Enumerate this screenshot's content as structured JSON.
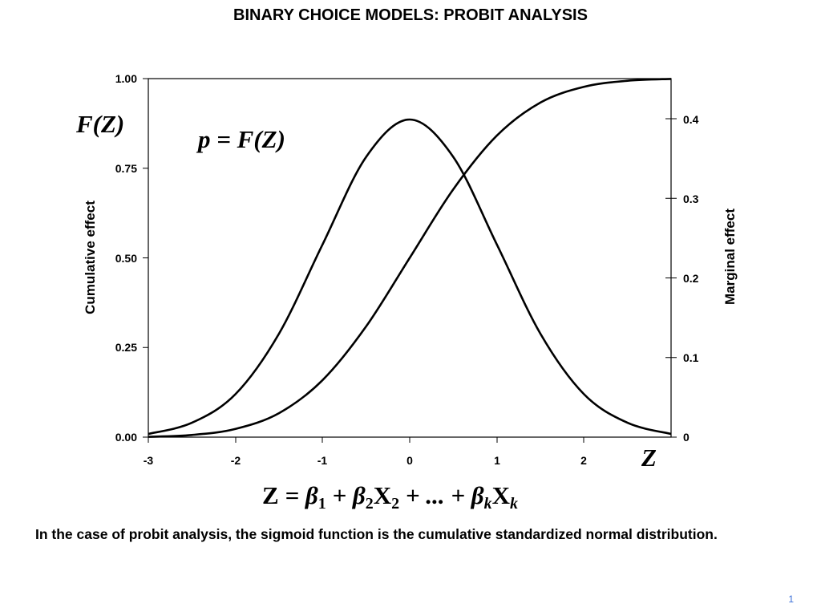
{
  "slide": {
    "title": "BINARY CHOICE MODELS: PROBIT ANALYSIS",
    "caption": "In the case of probit analysis, the sigmoid function is the cumulative standardized normal distribution.",
    "page_number": "1"
  },
  "annotations": {
    "left_math_label": "F(Z)",
    "in_plot_equation": "p = F(Z)",
    "x_math_label": "Z",
    "bottom_equation": "Z = β1 + β2X2 + ... + βkXk"
  },
  "chart_data": {
    "type": "line",
    "title": "BINARY CHOICE MODELS: PROBIT ANALYSIS",
    "xlabel": "Z",
    "ylabel": "Cumulative effect",
    "y2label": "Marginal effect",
    "xlim": [
      -3,
      3
    ],
    "ylim": [
      0,
      1
    ],
    "y2lim": [
      0,
      0.45
    ],
    "x_ticks": [
      "-3",
      "-2",
      "-1",
      "0",
      "1",
      "2"
    ],
    "y_ticks": [
      "0.00",
      "0.25",
      "0.50",
      "0.75",
      "1.00"
    ],
    "y2_ticks": [
      "0",
      "0.1",
      "0.2",
      "0.3",
      "0.4"
    ],
    "grid": false,
    "legend": null,
    "series": [
      {
        "name": "Cumulative effect F(Z) (standard normal CDF)",
        "axis": "left",
        "x": [
          -3,
          -2.5,
          -2,
          -1.5,
          -1,
          -0.5,
          0,
          0.5,
          1,
          1.5,
          2,
          2.5,
          3
        ],
        "values": [
          0.001,
          0.006,
          0.023,
          0.067,
          0.159,
          0.309,
          0.5,
          0.691,
          0.841,
          0.933,
          0.977,
          0.994,
          0.999
        ]
      },
      {
        "name": "Marginal effect f(Z) (standard normal PDF)",
        "axis": "right",
        "x": [
          -3,
          -2.5,
          -2,
          -1.5,
          -1,
          -0.5,
          0,
          0.5,
          1,
          1.5,
          2,
          2.5,
          3
        ],
        "values": [
          0.004,
          0.018,
          0.054,
          0.13,
          0.242,
          0.352,
          0.399,
          0.352,
          0.242,
          0.13,
          0.054,
          0.018,
          0.004
        ]
      }
    ]
  }
}
